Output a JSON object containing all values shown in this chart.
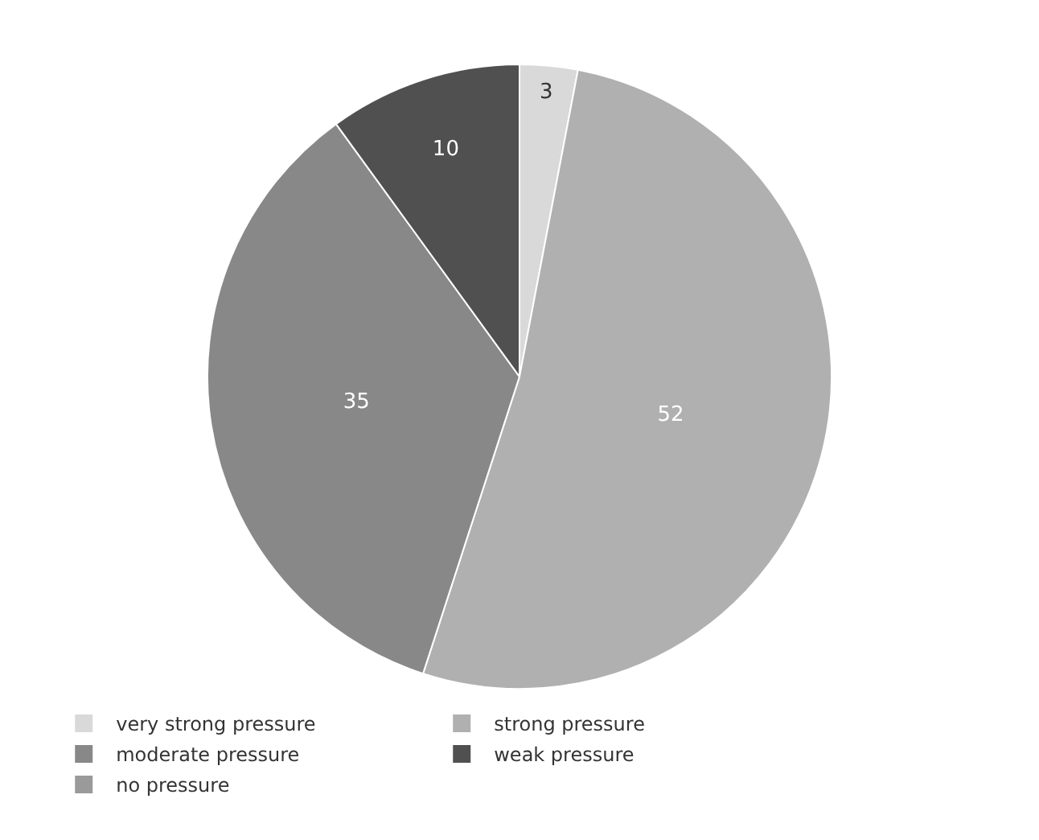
{
  "chart_data": {
    "type": "pie",
    "categories": [
      "very strong pressure",
      "strong pressure",
      "moderate pressure",
      "weak pressure",
      "no pressure"
    ],
    "values": [
      3,
      52,
      35,
      10,
      0
    ],
    "value_labels": [
      "3",
      "52",
      "35",
      "10",
      null
    ],
    "colors": [
      "#d9d9d9",
      "#b0b0b0",
      "#888888",
      "#505050",
      "#9a9a9a"
    ],
    "legend": "bottom"
  }
}
